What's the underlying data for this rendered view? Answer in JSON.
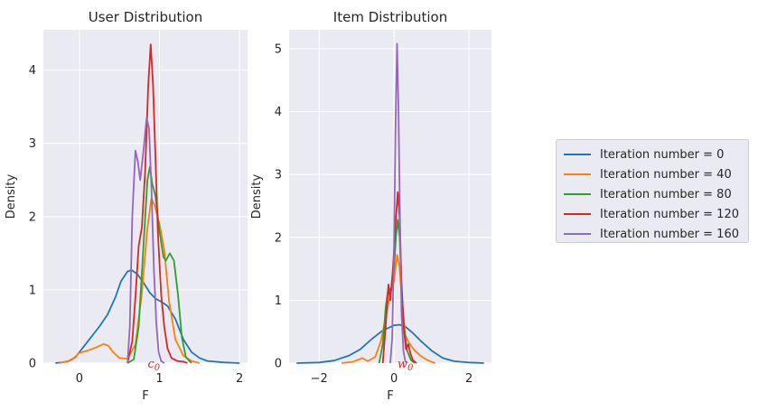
{
  "colors": {
    "axes_bg": "#eaeaf2",
    "grid": "#ffffff",
    "text": "#262626",
    "annotation": "#d62728",
    "series": [
      "#1f77b4",
      "#ff7f0e",
      "#2ca02c",
      "#d62728",
      "#9467bd"
    ]
  },
  "legend": {
    "placement": "right",
    "items": [
      "Iteration number = 0",
      "Iteration number = 40",
      "Iteration number = 80",
      "Iteration number = 120",
      "Iteration number = 160"
    ]
  },
  "chart_data": [
    {
      "type": "line",
      "title": "User Distribution",
      "xlabel": "F",
      "ylabel": "Density",
      "xlim": [
        -0.45,
        2.1
      ],
      "ylim": [
        0,
        4.55
      ],
      "xticks": [
        0,
        1,
        2
      ],
      "yticks": [
        0,
        1,
        2,
        3,
        4
      ],
      "grid": true,
      "annotation": {
        "text": "c0",
        "x": 0.93,
        "y": 0
      },
      "series": [
        {
          "name": "Iteration number = 0",
          "points": [
            [
              -0.3,
              0
            ],
            [
              -0.15,
              0.02
            ],
            [
              -0.05,
              0.08
            ],
            [
              0.05,
              0.22
            ],
            [
              0.15,
              0.36
            ],
            [
              0.25,
              0.5
            ],
            [
              0.35,
              0.66
            ],
            [
              0.45,
              0.9
            ],
            [
              0.52,
              1.12
            ],
            [
              0.6,
              1.25
            ],
            [
              0.65,
              1.27
            ],
            [
              0.72,
              1.22
            ],
            [
              0.8,
              1.1
            ],
            [
              0.88,
              0.96
            ],
            [
              0.95,
              0.88
            ],
            [
              1.02,
              0.84
            ],
            [
              1.1,
              0.78
            ],
            [
              1.2,
              0.6
            ],
            [
              1.3,
              0.32
            ],
            [
              1.4,
              0.15
            ],
            [
              1.5,
              0.07
            ],
            [
              1.6,
              0.03
            ],
            [
              1.8,
              0.01
            ],
            [
              2.0,
              0
            ]
          ]
        },
        {
          "name": "Iteration number = 40",
          "points": [
            [
              -0.25,
              0
            ],
            [
              -0.1,
              0.04
            ],
            [
              0.0,
              0.14
            ],
            [
              0.1,
              0.17
            ],
            [
              0.2,
              0.21
            ],
            [
              0.3,
              0.26
            ],
            [
              0.36,
              0.24
            ],
            [
              0.42,
              0.15
            ],
            [
              0.5,
              0.07
            ],
            [
              0.6,
              0.06
            ],
            [
              0.7,
              0.25
            ],
            [
              0.78,
              0.95
            ],
            [
              0.85,
              1.85
            ],
            [
              0.9,
              2.25
            ],
            [
              0.94,
              2.15
            ],
            [
              1.0,
              1.9
            ],
            [
              1.06,
              1.55
            ],
            [
              1.12,
              0.85
            ],
            [
              1.2,
              0.32
            ],
            [
              1.3,
              0.1
            ],
            [
              1.4,
              0.03
            ],
            [
              1.5,
              0
            ]
          ]
        },
        {
          "name": "Iteration number = 80",
          "points": [
            [
              0.6,
              0
            ],
            [
              0.68,
              0.05
            ],
            [
              0.74,
              0.5
            ],
            [
              0.8,
              1.6
            ],
            [
              0.85,
              2.5
            ],
            [
              0.88,
              2.68
            ],
            [
              0.91,
              2.45
            ],
            [
              0.95,
              2.28
            ],
            [
              1.0,
              1.8
            ],
            [
              1.05,
              1.45
            ],
            [
              1.08,
              1.4
            ],
            [
              1.13,
              1.5
            ],
            [
              1.18,
              1.4
            ],
            [
              1.23,
              0.95
            ],
            [
              1.28,
              0.35
            ],
            [
              1.33,
              0.08
            ],
            [
              1.4,
              0
            ]
          ]
        },
        {
          "name": "Iteration number = 120",
          "points": [
            [
              0.6,
              0
            ],
            [
              0.66,
              0.3
            ],
            [
              0.7,
              0.9
            ],
            [
              0.74,
              1.6
            ],
            [
              0.78,
              1.85
            ],
            [
              0.82,
              2.6
            ],
            [
              0.86,
              3.8
            ],
            [
              0.89,
              4.35
            ],
            [
              0.92,
              3.8
            ],
            [
              0.95,
              2.8
            ],
            [
              0.98,
              1.8
            ],
            [
              1.02,
              0.95
            ],
            [
              1.06,
              0.5
            ],
            [
              1.1,
              0.2
            ],
            [
              1.15,
              0.07
            ],
            [
              1.22,
              0.03
            ],
            [
              1.3,
              0.02
            ],
            [
              1.35,
              0
            ]
          ]
        },
        {
          "name": "Iteration number = 160",
          "points": [
            [
              0.6,
              0
            ],
            [
              0.63,
              0.5
            ],
            [
              0.66,
              2.0
            ],
            [
              0.7,
              2.9
            ],
            [
              0.73,
              2.75
            ],
            [
              0.76,
              2.5
            ],
            [
              0.8,
              2.9
            ],
            [
              0.84,
              3.35
            ],
            [
              0.87,
              3.2
            ],
            [
              0.9,
              2.4
            ],
            [
              0.93,
              1.3
            ],
            [
              0.96,
              0.55
            ],
            [
              0.99,
              0.15
            ],
            [
              1.02,
              0.03
            ],
            [
              1.06,
              0
            ]
          ]
        }
      ]
    },
    {
      "type": "line",
      "title": "Item Distribution",
      "xlabel": "F",
      "ylabel": "Density",
      "xlim": [
        -2.8,
        2.6
      ],
      "ylim": [
        0,
        5.3
      ],
      "xticks": [
        -2,
        0,
        2
      ],
      "yticks": [
        0,
        1,
        2,
        3,
        4,
        5
      ],
      "grid": true,
      "annotation": {
        "text": "w0",
        "x": 0.3,
        "y": 0
      },
      "series": [
        {
          "name": "Iteration number = 0",
          "points": [
            [
              -2.6,
              0
            ],
            [
              -2.0,
              0.01
            ],
            [
              -1.6,
              0.04
            ],
            [
              -1.2,
              0.12
            ],
            [
              -0.9,
              0.22
            ],
            [
              -0.6,
              0.38
            ],
            [
              -0.3,
              0.52
            ],
            [
              0.0,
              0.6
            ],
            [
              0.15,
              0.61
            ],
            [
              0.3,
              0.58
            ],
            [
              0.5,
              0.48
            ],
            [
              0.7,
              0.36
            ],
            [
              1.0,
              0.2
            ],
            [
              1.3,
              0.08
            ],
            [
              1.6,
              0.03
            ],
            [
              2.0,
              0.01
            ],
            [
              2.4,
              0
            ]
          ]
        },
        {
          "name": "Iteration number = 40",
          "points": [
            [
              -1.4,
              0
            ],
            [
              -1.1,
              0.02
            ],
            [
              -0.85,
              0.08
            ],
            [
              -0.7,
              0.03
            ],
            [
              -0.5,
              0.1
            ],
            [
              -0.35,
              0.35
            ],
            [
              -0.2,
              0.8
            ],
            [
              -0.1,
              1.1
            ],
            [
              0.0,
              1.3
            ],
            [
              0.08,
              1.72
            ],
            [
              0.14,
              1.55
            ],
            [
              0.2,
              1.1
            ],
            [
              0.3,
              0.45
            ],
            [
              0.4,
              0.32
            ],
            [
              0.55,
              0.2
            ],
            [
              0.7,
              0.12
            ],
            [
              0.85,
              0.06
            ],
            [
              1.0,
              0.02
            ],
            [
              1.1,
              0
            ]
          ]
        },
        {
          "name": "Iteration number = 80",
          "points": [
            [
              -0.4,
              0
            ],
            [
              -0.3,
              0.3
            ],
            [
              -0.22,
              0.9
            ],
            [
              -0.15,
              1.2
            ],
            [
              -0.08,
              1.15
            ],
            [
              0.0,
              1.5
            ],
            [
              0.05,
              2.0
            ],
            [
              0.1,
              2.28
            ],
            [
              0.15,
              2.0
            ],
            [
              0.2,
              1.2
            ],
            [
              0.27,
              0.55
            ],
            [
              0.35,
              0.2
            ],
            [
              0.45,
              0.05
            ],
            [
              0.55,
              0
            ]
          ]
        },
        {
          "name": "Iteration number = 120",
          "points": [
            [
              -0.3,
              0
            ],
            [
              -0.22,
              0.6
            ],
            [
              -0.15,
              1.25
            ],
            [
              -0.1,
              1.0
            ],
            [
              -0.03,
              1.5
            ],
            [
              0.04,
              2.2
            ],
            [
              0.1,
              2.72
            ],
            [
              0.15,
              2.3
            ],
            [
              0.2,
              1.3
            ],
            [
              0.26,
              0.55
            ],
            [
              0.32,
              0.22
            ],
            [
              0.38,
              0.3
            ],
            [
              0.44,
              0.15
            ],
            [
              0.5,
              0.05
            ],
            [
              0.6,
              0
            ]
          ]
        },
        {
          "name": "Iteration number = 160",
          "points": [
            [
              -0.1,
              0
            ],
            [
              -0.05,
              0.4
            ],
            [
              0.0,
              1.8
            ],
            [
              0.04,
              3.8
            ],
            [
              0.08,
              5.08
            ],
            [
              0.12,
              4.0
            ],
            [
              0.16,
              2.2
            ],
            [
              0.2,
              0.8
            ],
            [
              0.25,
              0.2
            ],
            [
              0.3,
              0.03
            ],
            [
              0.35,
              0
            ]
          ]
        }
      ]
    }
  ]
}
